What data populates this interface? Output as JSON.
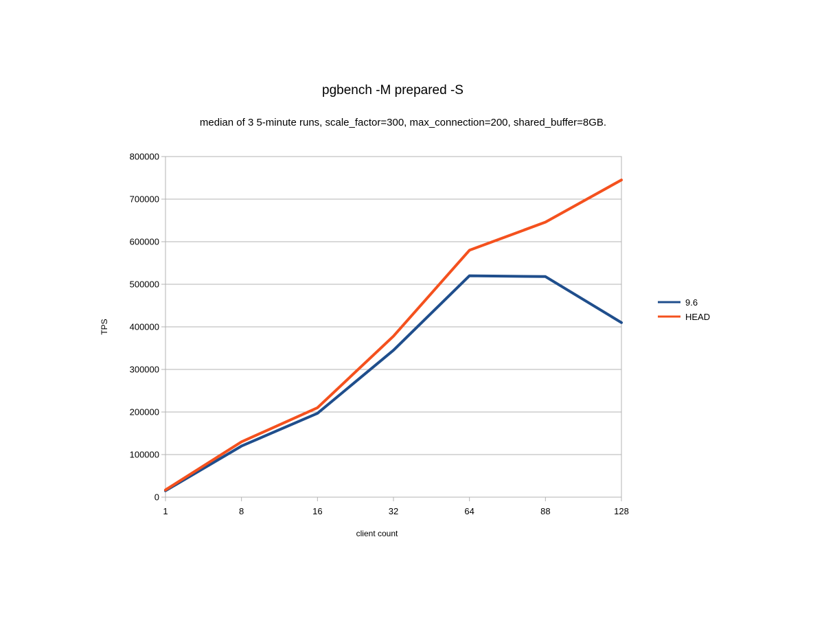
{
  "chart_data": {
    "type": "line",
    "title": "pgbench -M prepared -S",
    "subtitle": "median of 3 5-minute runs, scale_factor=300, max_connection=200, shared_buffer=8GB.",
    "xlabel": "client count",
    "ylabel": "TPS",
    "categories": [
      "1",
      "8",
      "16",
      "32",
      "64",
      "88",
      "128"
    ],
    "ylim": [
      0,
      800000
    ],
    "yticks": [
      0,
      100000,
      200000,
      300000,
      400000,
      500000,
      600000,
      700000,
      800000
    ],
    "grid": true,
    "legend_position": "right",
    "series": [
      {
        "name": "9.6",
        "color": "#1f4e8c",
        "values": [
          15000,
          120000,
          197000,
          345000,
          520000,
          518000,
          410000
        ]
      },
      {
        "name": "HEAD",
        "color": "#f4511e",
        "values": [
          17000,
          130000,
          210000,
          378000,
          580000,
          646000,
          745000
        ]
      }
    ]
  }
}
